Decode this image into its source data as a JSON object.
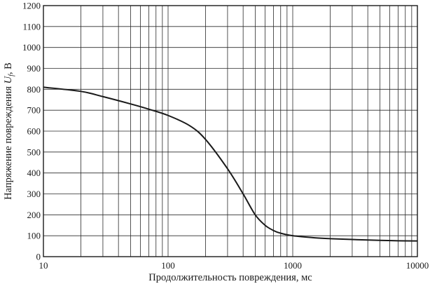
{
  "chart_data": {
    "type": "line",
    "title": "",
    "x_scale": "log",
    "xlim": [
      10,
      10000
    ],
    "ylim": [
      0,
      1200
    ],
    "grid": true,
    "xlabel": "Продолжительность повреждения, мс",
    "ylabel": {
      "prefix": "Напряжение повреждения ",
      "symbol": "U",
      "subscript": "f",
      "suffix": ", В"
    },
    "x_ticks": [
      10,
      100,
      1000,
      10000
    ],
    "x_tick_labels": [
      "10",
      "100",
      "1000",
      "10000"
    ],
    "y_ticks": [
      0,
      100,
      200,
      300,
      400,
      500,
      600,
      700,
      800,
      900,
      1000,
      1100,
      1200
    ],
    "y_tick_labels": [
      "0",
      "100",
      "200",
      "300",
      "400",
      "500",
      "600",
      "700",
      "800",
      "900",
      "1000",
      "1100",
      "1200"
    ],
    "series": [
      {
        "x": [
          10,
          20,
          30,
          50,
          70,
          100,
          150,
          200,
          300,
          400,
          500,
          600,
          700,
          800,
          1000,
          1500,
          2000,
          3000,
          5000,
          7000,
          10000
        ],
        "y": [
          810,
          790,
          765,
          730,
          705,
          675,
          625,
          560,
          420,
          300,
          200,
          150,
          125,
          112,
          100,
          90,
          86,
          82,
          78,
          76,
          75
        ]
      }
    ]
  }
}
